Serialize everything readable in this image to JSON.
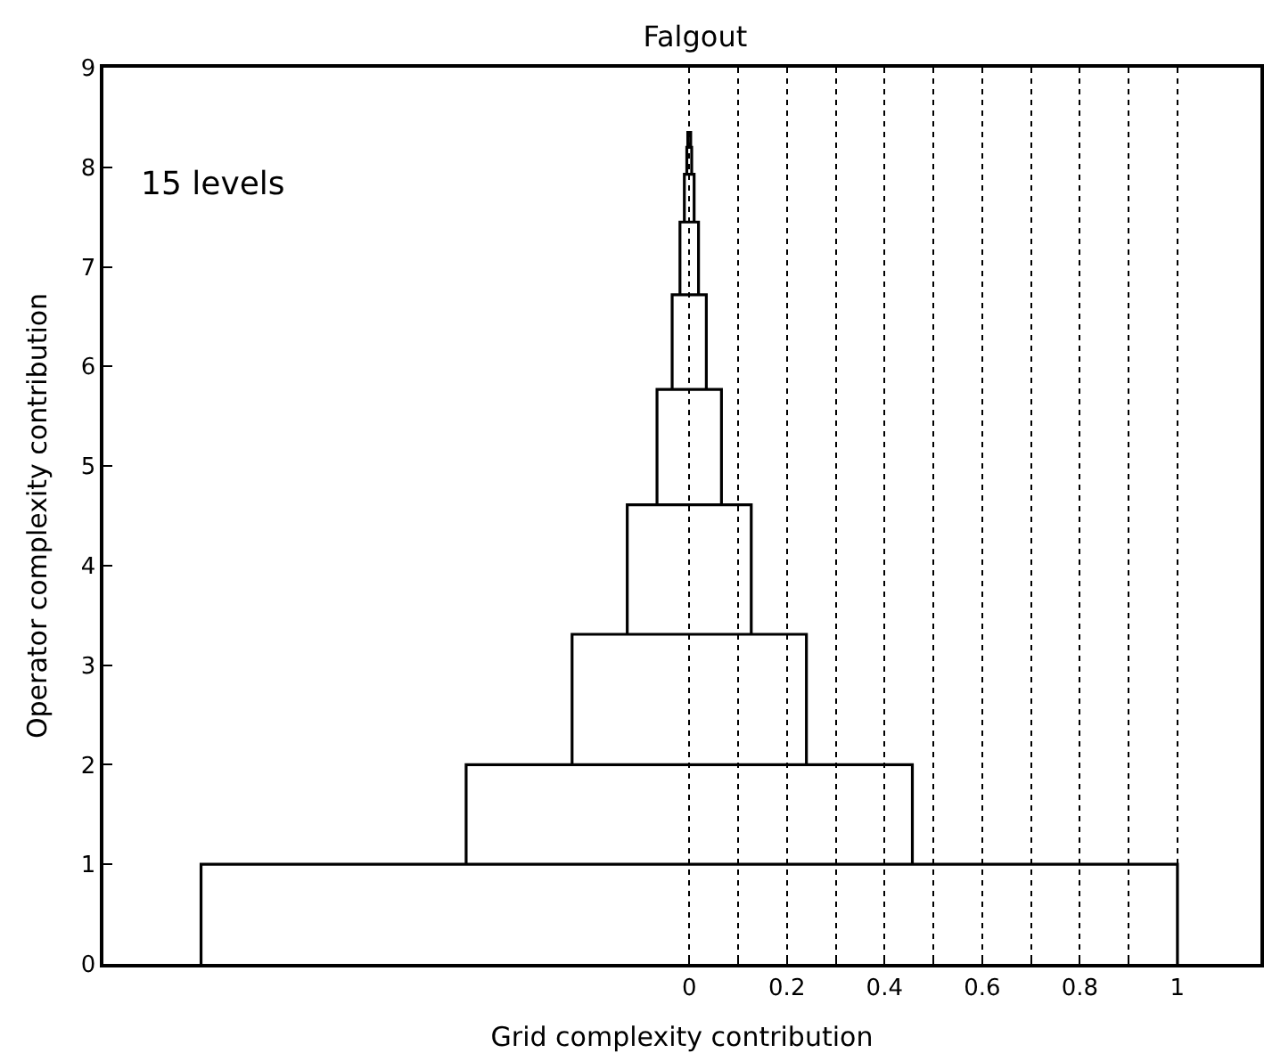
{
  "chart_data": {
    "type": "line",
    "title": "Falgout",
    "xlabel": "Grid complexity contribution",
    "ylabel": "Operator complexity contribution",
    "annotations": [
      "15 levels"
    ],
    "xlim": [
      -1.2,
      1.17
    ],
    "ylim": [
      0,
      9
    ],
    "xticks": [
      0,
      {
        "value": 0.1,
        "label": null
      },
      0.2,
      {
        "value": 0.3,
        "label": null
      },
      0.4,
      {
        "value": 0.5,
        "label": null
      },
      0.6,
      {
        "value": 0.7,
        "label": null
      },
      0.8,
      {
        "value": 0.9,
        "label": null
      },
      1
    ],
    "yticks": [
      0,
      1,
      2,
      3,
      4,
      5,
      6,
      7,
      8,
      9
    ],
    "grid": "x",
    "marker": "none",
    "line_style": "solid",
    "series": [
      {
        "color": "#000000",
        "x": [
          -1.0,
          -1.0,
          1.0,
          1.0
        ],
        "values": [
          0,
          1,
          1,
          0
        ]
      },
      {
        "color": "#000000",
        "x": [
          -0.457,
          -0.457,
          0.457,
          0.457
        ],
        "values": [
          1,
          2,
          2,
          1
        ]
      },
      {
        "color": "#000000",
        "x": [
          -0.24,
          -0.24,
          0.24,
          0.24
        ],
        "values": [
          2,
          3.31,
          3.31,
          2
        ]
      },
      {
        "color": "#000000",
        "x": [
          -0.127,
          -0.127,
          0.127,
          0.127
        ],
        "values": [
          3.31,
          4.61,
          4.61,
          3.31
        ]
      },
      {
        "color": "#000000",
        "x": [
          -0.066,
          -0.066,
          0.066,
          0.066
        ],
        "values": [
          4.61,
          5.77,
          5.77,
          4.61
        ]
      },
      {
        "color": "#000000",
        "x": [
          -0.035,
          -0.035,
          0.035,
          0.035
        ],
        "values": [
          5.77,
          6.72,
          6.72,
          5.77
        ]
      },
      {
        "color": "#000000",
        "x": [
          -0.019,
          -0.019,
          0.019,
          0.019
        ],
        "values": [
          6.72,
          7.45,
          7.45,
          6.72
        ]
      },
      {
        "color": "#000000",
        "x": [
          -0.01,
          -0.01,
          0.01,
          0.01
        ],
        "values": [
          7.45,
          7.93,
          7.93,
          7.45
        ]
      },
      {
        "color": "#000000",
        "x": [
          -0.005,
          -0.005,
          0.005,
          0.005
        ],
        "values": [
          7.93,
          8.2,
          8.2,
          7.93
        ]
      },
      {
        "color": "#000000",
        "x": [
          -0.003,
          -0.003,
          0.003,
          0.003
        ],
        "values": [
          8.2,
          8.35,
          8.35,
          8.2
        ]
      }
    ]
  }
}
